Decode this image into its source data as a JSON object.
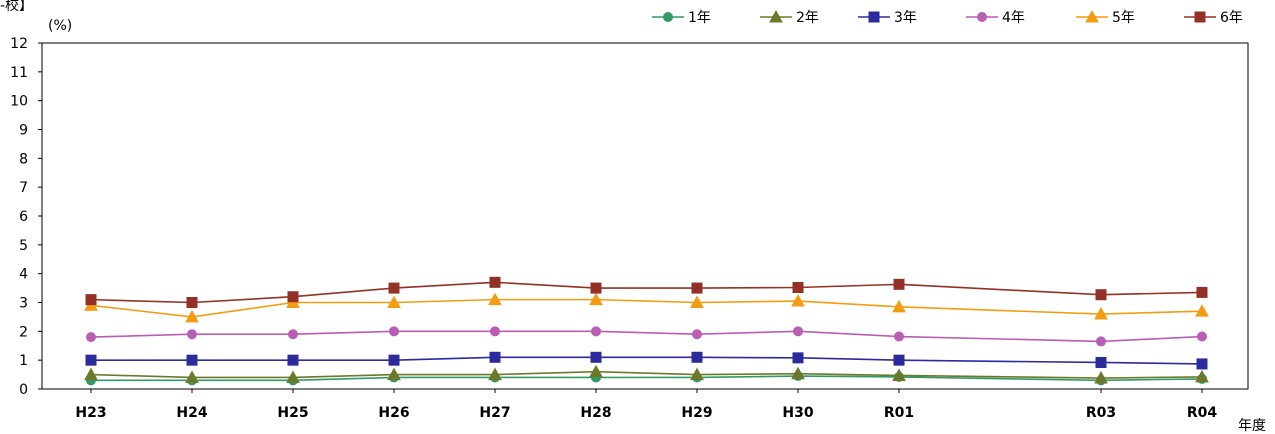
{
  "header_fragment": "-校】",
  "chart_data": {
    "type": "line",
    "ylabel": "(%)",
    "xlabel": "年度",
    "ylim": [
      0,
      12
    ],
    "yticks": [
      0,
      1,
      2,
      3,
      4,
      5,
      6,
      7,
      8,
      9,
      10,
      11,
      12
    ],
    "grid": false,
    "legend_position": "top-right",
    "x": [
      "H23",
      "H24",
      "H25",
      "H26",
      "H27",
      "H28",
      "H29",
      "H30",
      "R01",
      "R03",
      "R04"
    ],
    "x_year_index": [
      23,
      24,
      25,
      26,
      27,
      28,
      29,
      30,
      31,
      33,
      34
    ],
    "series": [
      {
        "name": "1年",
        "color": "#339966",
        "marker": "circle",
        "values": [
          0.3,
          0.3,
          0.3,
          0.4,
          0.4,
          0.4,
          0.4,
          0.45,
          0.42,
          0.3,
          0.35
        ]
      },
      {
        "name": "2年",
        "color": "#6B7A2A",
        "marker": "triangle",
        "values": [
          0.5,
          0.4,
          0.4,
          0.5,
          0.5,
          0.6,
          0.5,
          0.53,
          0.47,
          0.38,
          0.42
        ]
      },
      {
        "name": "3年",
        "color": "#2B2B9B",
        "marker": "square",
        "values": [
          1.0,
          1.0,
          1.0,
          1.0,
          1.1,
          1.1,
          1.1,
          1.08,
          1.0,
          0.92,
          0.87
        ]
      },
      {
        "name": "4年",
        "color": "#B95DB5",
        "marker": "circle",
        "values": [
          1.8,
          1.9,
          1.9,
          2.0,
          2.0,
          2.0,
          1.9,
          2.0,
          1.82,
          1.65,
          1.82
        ]
      },
      {
        "name": "5年",
        "color": "#F39C12",
        "marker": "triangle",
        "values": [
          2.9,
          2.5,
          3.0,
          3.0,
          3.1,
          3.1,
          3.0,
          3.05,
          2.85,
          2.6,
          2.7
        ]
      },
      {
        "name": "6年",
        "color": "#943126",
        "marker": "square",
        "values": [
          3.1,
          3.0,
          3.2,
          3.5,
          3.7,
          3.5,
          3.5,
          3.52,
          3.63,
          3.27,
          3.35
        ]
      }
    ]
  }
}
